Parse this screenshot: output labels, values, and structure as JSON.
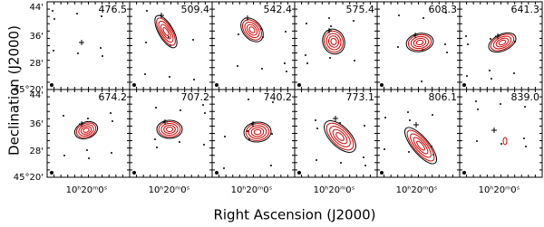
{
  "panels": [
    {
      "label": "476.5"
    },
    {
      "label": "509.4"
    },
    {
      "label": "542.4"
    },
    {
      "label": "575.4"
    },
    {
      "label": "608.3"
    },
    {
      "label": "641.3"
    },
    {
      "label": "674.2"
    },
    {
      "label": "707.2"
    },
    {
      "label": "740.2"
    },
    {
      "label": "773.1"
    },
    {
      "label": "806.1"
    },
    {
      "label": "839.0"
    }
  ],
  "y_ticks": [
    "44'",
    "36'",
    "28'",
    "45°20'"
  ],
  "x_tick": "10ʰ20ᵐ0ˢ",
  "y_axis_title": "Declination (J2000)",
  "x_axis_title": "Right Ascension (J2000)"
}
